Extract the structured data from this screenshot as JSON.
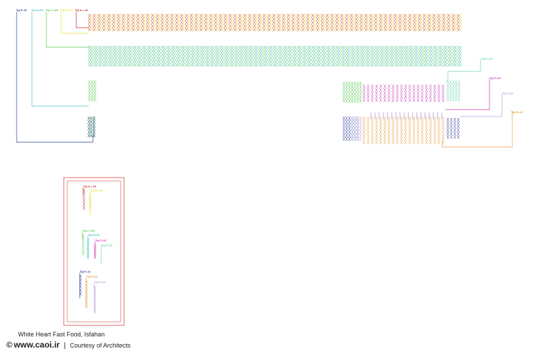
{
  "caption": "White Heart Fast Food, Isfahan",
  "footer": {
    "copyright_symbol": "©",
    "site": "www.caoi.ir",
    "separator": "|",
    "courtesy": "Courtesy of Architects"
  },
  "tips": {
    "E": "Tip E =6",
    "D": "Tip D=29",
    "C": "Tip C =69",
    "B": "Tip B =18",
    "A": "Tip A = 34",
    "F": "Tip F=14",
    "G": "Tip F=12",
    "H": "Tip F=14",
    "I": "Tip H=18"
  },
  "colors": {
    "E": "#2a3a9a",
    "D": "#49c0c8",
    "C": "#52c84a",
    "B": "#e8e03a",
    "A": "#c82828",
    "F": "#6cd4a8",
    "G": "#c83ab8",
    "H": "#b4a8d8",
    "I": "#e8a048",
    "frame": "#d84a4a"
  }
}
